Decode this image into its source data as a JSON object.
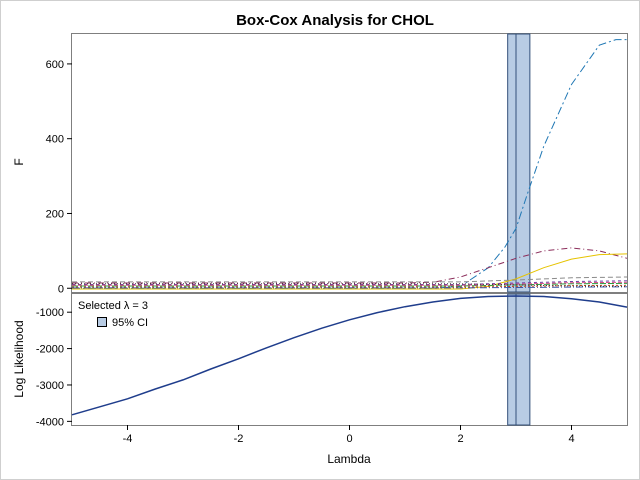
{
  "chart_data": {
    "type": "line",
    "title": "Box-Cox Analysis for CHOL",
    "xlabel": "Lambda",
    "xlim": [
      -5,
      5
    ],
    "x_ticks": [
      "-4",
      "-2",
      "0",
      "2",
      "4"
    ],
    "x_tick_values": [
      -4,
      -2,
      0,
      2,
      4
    ],
    "selected_band": {
      "lambda": 3,
      "ci": [
        2.85,
        3.25
      ],
      "color": "#b8cce4"
    },
    "panels": [
      {
        "ylabel": "F",
        "ylim": [
          -10,
          680
        ],
        "y_ticks": [
          "0",
          "200",
          "400",
          "600"
        ],
        "y_tick_values": [
          0,
          200,
          400,
          600
        ],
        "series": [
          {
            "color": "#1f77b4",
            "dash": "8,3,2,3",
            "x": [
              -5,
              1.5,
              2.0,
              2.5,
              2.8,
              3.0,
              3.2,
              3.5,
              4.0,
              4.5,
              4.8,
              5.0
            ],
            "values": [
              0,
              0,
              5,
              55,
              110,
              160,
              250,
              380,
              545,
              650,
              665,
              665
            ]
          },
          {
            "color": "#8b2c5a",
            "dash": "6,3,1,3",
            "x": [
              -5,
              1.0,
              1.5,
              2.0,
              2.5,
              3.0,
              3.5,
              4.0,
              4.5,
              5.0
            ],
            "values": [
              14,
              14,
              16,
              30,
              55,
              80,
              100,
              108,
              100,
              80
            ]
          },
          {
            "color": "#e6c300",
            "dash": "",
            "x": [
              -5,
              2.0,
              2.5,
              3.0,
              3.5,
              4.0,
              4.5,
              5.0
            ],
            "values": [
              -2,
              -2,
              5,
              25,
              55,
              78,
              90,
              92
            ]
          },
          {
            "color": "#8a8a8a",
            "dash": "5,3",
            "x": [
              -5,
              2.0,
              3.0,
              4.0,
              5.0
            ],
            "values": [
              17,
              17,
              22,
              28,
              30
            ]
          },
          {
            "color": "#6b3fa0",
            "dash": "3,3",
            "x": [
              -5,
              2.0,
              3.0,
              4.0,
              5.0
            ],
            "values": [
              10,
              10,
              14,
              18,
              20
            ]
          },
          {
            "color": "#2a9d3f",
            "dash": "6,2",
            "x": [
              -5,
              2.0,
              3.0,
              4.0,
              5.0
            ],
            "values": [
              6,
              6,
              9,
              12,
              13
            ]
          },
          {
            "color": "#c04a1f",
            "dash": "2,2",
            "x": [
              -5,
              2.0,
              3.0,
              4.0,
              5.0
            ],
            "values": [
              3,
              3,
              5,
              7,
              8
            ]
          },
          {
            "color": "#3f55a8",
            "dash": "7,2,1,2",
            "x": [
              -5,
              2.0,
              3.0,
              4.0,
              5.0
            ],
            "values": [
              1,
              1,
              2,
              3,
              4
            ]
          },
          {
            "color": "#d94f8a",
            "dash": "4,2",
            "x": [
              -5,
              2.0,
              3.0,
              4.0,
              5.0
            ],
            "values": [
              8,
              8,
              11,
              15,
              16
            ]
          },
          {
            "color": "#3a3a3a",
            "dash": "1,2",
            "x": [
              -5,
              2.0,
              3.0,
              4.0,
              5.0
            ],
            "values": [
              12,
              12,
              9,
              6,
              5
            ]
          }
        ]
      },
      {
        "ylabel": "Log Likelihood",
        "ylim": [
          -4100,
          -500
        ],
        "y_ticks": [
          "-4000",
          "-3000",
          "-2000",
          "-1000"
        ],
        "y_tick_values": [
          -4000,
          -3000,
          -2000,
          -1000
        ],
        "series": [
          {
            "color": "#1f3d8c",
            "dash": "",
            "x": [
              -5.0,
              -4.5,
              -4.0,
              -3.5,
              -3.0,
              -2.5,
              -2.0,
              -1.5,
              -1.0,
              -0.5,
              0.0,
              0.5,
              1.0,
              1.5,
              2.0,
              2.5,
              3.0,
              3.5,
              4.0,
              4.5,
              5.0
            ],
            "values": [
              -3820,
              -3600,
              -3380,
              -3110,
              -2860,
              -2560,
              -2280,
              -1980,
              -1700,
              -1440,
              -1210,
              -1010,
              -850,
              -720,
              -620,
              -570,
              -555,
              -570,
              -630,
              -720,
              -860
            ]
          }
        ]
      }
    ],
    "legend": {
      "selected_label": "Selected λ = 3",
      "ci_label": "95% CI",
      "position": "top-left"
    }
  }
}
